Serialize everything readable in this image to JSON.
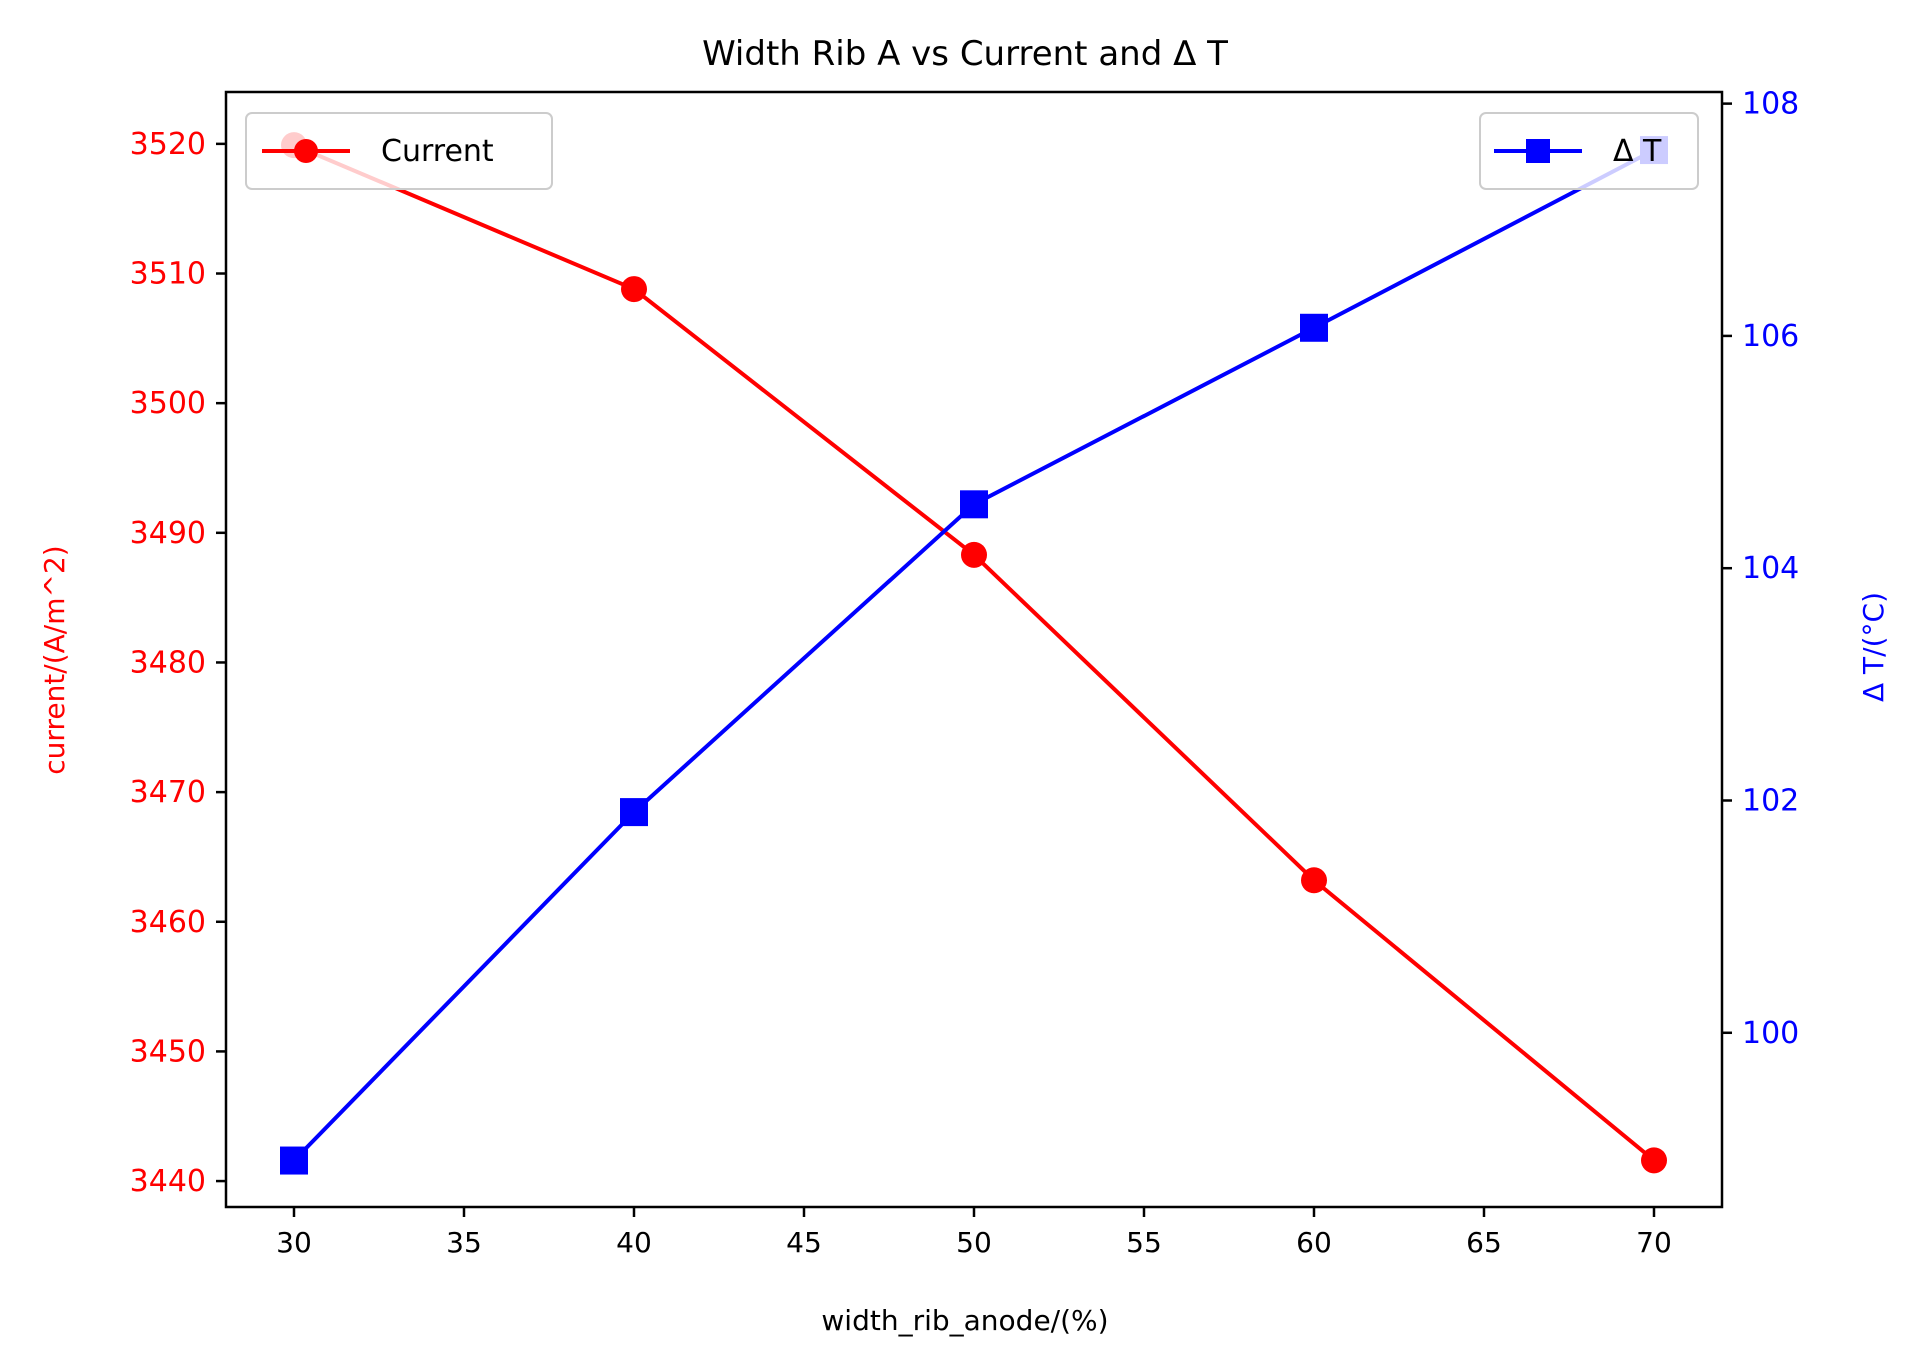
{
  "chart_data": {
    "type": "line",
    "title": "Width Rib A vs Current and Δ T",
    "xlabel": "width_rib_anode/(%)",
    "ylabel_left": "current/(A/m^2)",
    "ylabel_right": "Δ T/(°C)",
    "x": [
      30,
      40,
      50,
      60,
      70
    ],
    "xlim": [
      28,
      72
    ],
    "xticks": [
      30,
      35,
      40,
      45,
      50,
      55,
      60,
      65,
      70
    ],
    "ylim_left": [
      3438,
      3524
    ],
    "yticks_left": [
      3440,
      3450,
      3460,
      3470,
      3480,
      3490,
      3500,
      3510,
      3520
    ],
    "ylim_right": [
      98.5,
      108.1
    ],
    "yticks_right": [
      100,
      102,
      104,
      106,
      108
    ],
    "grid": false,
    "series": [
      {
        "name": "Current",
        "axis": "left",
        "color": "#ff0000",
        "marker": "circle",
        "values": [
          3519.9,
          3508.8,
          3488.3,
          3463.2,
          3441.6
        ],
        "legend_position": "top-left"
      },
      {
        "name": "Δ T",
        "axis": "right",
        "color": "#0000ff",
        "marker": "square",
        "values": [
          98.9,
          101.9,
          104.55,
          106.07,
          107.6
        ],
        "legend_position": "top-right"
      }
    ]
  }
}
